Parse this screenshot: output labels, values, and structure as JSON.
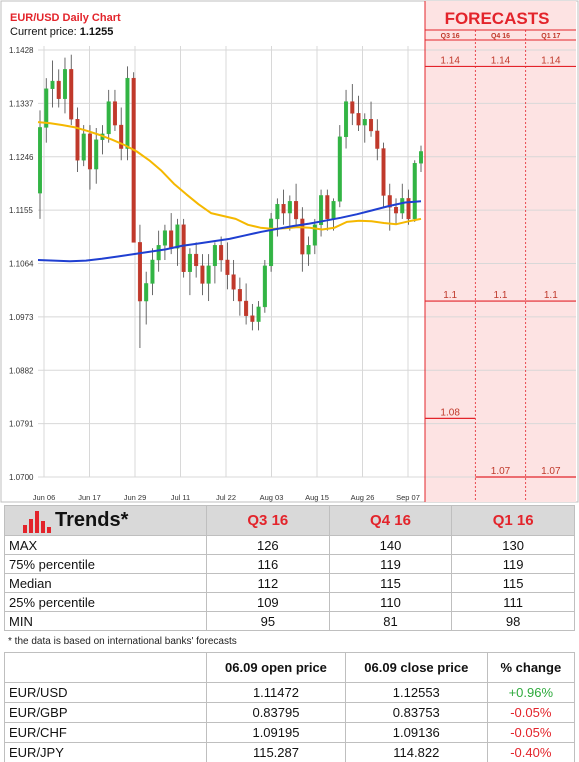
{
  "chart_data": {
    "type": "candlestick",
    "title": "EUR/USD Daily Chart",
    "current_price_label": "Current price:",
    "current_price": "1.1255",
    "y_ticks": [
      "1.1428",
      "1.1337",
      "1.1246",
      "1.1155",
      "1.1064",
      "1.0973",
      "1.0882",
      "1.0791",
      "1.0700"
    ],
    "ylim": [
      1.07,
      1.1428
    ],
    "x_ticks": [
      "Jun 06",
      "Jun 17",
      "Jun 29",
      "Jul 11",
      "Jul 22",
      "Aug 03",
      "Aug 15",
      "Aug 26",
      "Sep 07"
    ],
    "candles": [
      [
        1.1184,
        1.1325,
        1.114,
        1.1296
      ],
      [
        1.1296,
        1.138,
        1.127,
        1.1362
      ],
      [
        1.1362,
        1.141,
        1.133,
        1.1375
      ],
      [
        1.1375,
        1.1395,
        1.133,
        1.1345
      ],
      [
        1.1345,
        1.1415,
        1.132,
        1.1395
      ],
      [
        1.1395,
        1.142,
        1.13,
        1.131
      ],
      [
        1.131,
        1.133,
        1.122,
        1.124
      ],
      [
        1.124,
        1.13,
        1.123,
        1.1285
      ],
      [
        1.1285,
        1.13,
        1.119,
        1.1225
      ],
      [
        1.1225,
        1.1295,
        1.12,
        1.1275
      ],
      [
        1.1275,
        1.13,
        1.125,
        1.1285
      ],
      [
        1.1285,
        1.136,
        1.127,
        1.134
      ],
      [
        1.134,
        1.136,
        1.129,
        1.13
      ],
      [
        1.13,
        1.133,
        1.124,
        1.126
      ],
      [
        1.126,
        1.14,
        1.124,
        1.138
      ],
      [
        1.138,
        1.139,
        1.11,
        1.11
      ],
      [
        1.11,
        1.113,
        1.092,
        1.1
      ],
      [
        1.1,
        1.105,
        1.096,
        1.103
      ],
      [
        1.103,
        1.109,
        1.101,
        1.107
      ],
      [
        1.107,
        1.112,
        1.105,
        1.1095
      ],
      [
        1.1095,
        1.113,
        1.107,
        1.112
      ],
      [
        1.112,
        1.115,
        1.108,
        1.109
      ],
      [
        1.109,
        1.114,
        1.106,
        1.113
      ],
      [
        1.113,
        1.114,
        1.104,
        1.105
      ],
      [
        1.105,
        1.109,
        1.101,
        1.108
      ],
      [
        1.108,
        1.11,
        1.104,
        1.106
      ],
      [
        1.106,
        1.108,
        1.101,
        1.103
      ],
      [
        1.103,
        1.108,
        1.1,
        1.106
      ],
      [
        1.106,
        1.11,
        1.103,
        1.1095
      ],
      [
        1.1095,
        1.111,
        1.105,
        1.107
      ],
      [
        1.107,
        1.11,
        1.102,
        1.1045
      ],
      [
        1.1045,
        1.107,
        1.1,
        1.102
      ],
      [
        1.102,
        1.104,
        1.0975,
        1.1
      ],
      [
        1.1,
        1.103,
        1.096,
        1.0975
      ],
      [
        1.0975,
        1.0995,
        1.095,
        1.0965
      ],
      [
        1.0965,
        1.1,
        1.095,
        1.099
      ],
      [
        1.099,
        1.107,
        1.098,
        1.106
      ],
      [
        1.106,
        1.115,
        1.105,
        1.114
      ],
      [
        1.114,
        1.1175,
        1.111,
        1.1165
      ],
      [
        1.1165,
        1.119,
        1.113,
        1.115
      ],
      [
        1.115,
        1.118,
        1.112,
        1.117
      ],
      [
        1.117,
        1.12,
        1.113,
        1.114
      ],
      [
        1.114,
        1.116,
        1.105,
        1.108
      ],
      [
        1.108,
        1.111,
        1.106,
        1.1095
      ],
      [
        1.1095,
        1.114,
        1.108,
        1.113
      ],
      [
        1.113,
        1.119,
        1.111,
        1.118
      ],
      [
        1.118,
        1.119,
        1.112,
        1.114
      ],
      [
        1.114,
        1.1175,
        1.112,
        1.117
      ],
      [
        1.117,
        1.13,
        1.116,
        1.128
      ],
      [
        1.128,
        1.136,
        1.126,
        1.134
      ],
      [
        1.134,
        1.137,
        1.13,
        1.132
      ],
      [
        1.132,
        1.135,
        1.129,
        1.13
      ],
      [
        1.13,
        1.132,
        1.127,
        1.131
      ],
      [
        1.131,
        1.134,
        1.128,
        1.129
      ],
      [
        1.129,
        1.131,
        1.124,
        1.126
      ],
      [
        1.126,
        1.127,
        1.116,
        1.118
      ],
      [
        1.118,
        1.12,
        1.112,
        1.116
      ],
      [
        1.116,
        1.1175,
        1.113,
        1.115
      ],
      [
        1.115,
        1.12,
        1.114,
        1.1175
      ],
      [
        1.1175,
        1.119,
        1.113,
        1.114
      ],
      [
        1.114,
        1.124,
        1.1135,
        1.1235
      ],
      [
        1.1235,
        1.1265,
        1.122,
        1.1255
      ]
    ],
    "ma_blue": [
      1.107,
      1.1069,
      1.1068,
      1.1069,
      1.1072,
      1.1076,
      1.108,
      1.1084,
      1.1088,
      1.1094,
      1.1098,
      1.1102,
      1.1106,
      1.1112,
      1.1118,
      1.1123,
      1.1128,
      1.1132,
      1.1137,
      1.1142,
      1.1148,
      1.1155,
      1.1162,
      1.1168,
      1.117
    ],
    "ma_yellow": [
      1.1305,
      1.1303,
      1.13,
      1.1296,
      1.129,
      1.1283,
      1.1275,
      1.1266,
      1.1255,
      1.124,
      1.1222,
      1.12,
      1.1182,
      1.1165,
      1.115,
      1.1145,
      1.114,
      1.113,
      1.1125,
      1.1123,
      1.1124,
      1.1126,
      1.1125,
      1.1122,
      1.1125,
      1.1135,
      1.1137,
      1.1136,
      1.1133,
      1.1131,
      1.1136,
      1.114
    ],
    "colors": {
      "bull": "#32b444",
      "bear": "#c0392b",
      "ma_blue": "#1f3fd1",
      "ma_yellow": "#f5b800",
      "forecast_bg": "#fde3e3",
      "forecast_line": "#e3242b",
      "grid": "#d8d8d8"
    },
    "forecasts": {
      "title": "FORECASTS",
      "columns": [
        "Q3 16",
        "Q4 16",
        "Q1 17"
      ],
      "levels": [
        {
          "value": 1.14,
          "labels": [
            "1.14",
            "1.14",
            "1.14"
          ]
        },
        {
          "value": 1.1,
          "labels": [
            "1.1",
            "1.1",
            "1.1"
          ]
        },
        {
          "value": 1.08,
          "labels": [
            "1.08",
            "",
            ""
          ]
        },
        {
          "value": 1.07,
          "labels": [
            "",
            "1.07",
            "1.07"
          ]
        }
      ],
      "column_ranges": [
        {
          "max": 1.14,
          "min": 1.08
        },
        {
          "max": 1.14,
          "min": 1.07
        },
        {
          "max": 1.14,
          "min": 1.07
        }
      ]
    }
  },
  "trends": {
    "title": "Trends*",
    "columns": [
      "Q3 16",
      "Q4 16",
      "Q1 16"
    ],
    "rows": [
      {
        "label": "MAX",
        "values": [
          "126",
          "140",
          "130"
        ]
      },
      {
        "label": "75% percentile",
        "values": [
          "116",
          "119",
          "119"
        ]
      },
      {
        "label": "Median",
        "values": [
          "112",
          "115",
          "115"
        ]
      },
      {
        "label": "25% percentile",
        "values": [
          "109",
          "110",
          "111"
        ]
      },
      {
        "label": "MIN",
        "values": [
          "95",
          "81",
          "98"
        ]
      }
    ],
    "footnote": "* the data is based on international banks' forecasts"
  },
  "prices": {
    "columns": [
      "06.09 open price",
      "06.09 close price",
      "% change"
    ],
    "rows": [
      {
        "pair": "EUR/USD",
        "open": "1.11472",
        "close": "1.12553",
        "change": "+0.96%",
        "direction": "up"
      },
      {
        "pair": "EUR/GBP",
        "open": "0.83795",
        "close": "0.83753",
        "change": "-0.05%",
        "direction": "down"
      },
      {
        "pair": "EUR/CHF",
        "open": "1.09195",
        "close": "1.09136",
        "change": "-0.05%",
        "direction": "down"
      },
      {
        "pair": "EUR/JPY",
        "open": "115.287",
        "close": "114.822",
        "change": "-0.40%",
        "direction": "down"
      }
    ]
  }
}
